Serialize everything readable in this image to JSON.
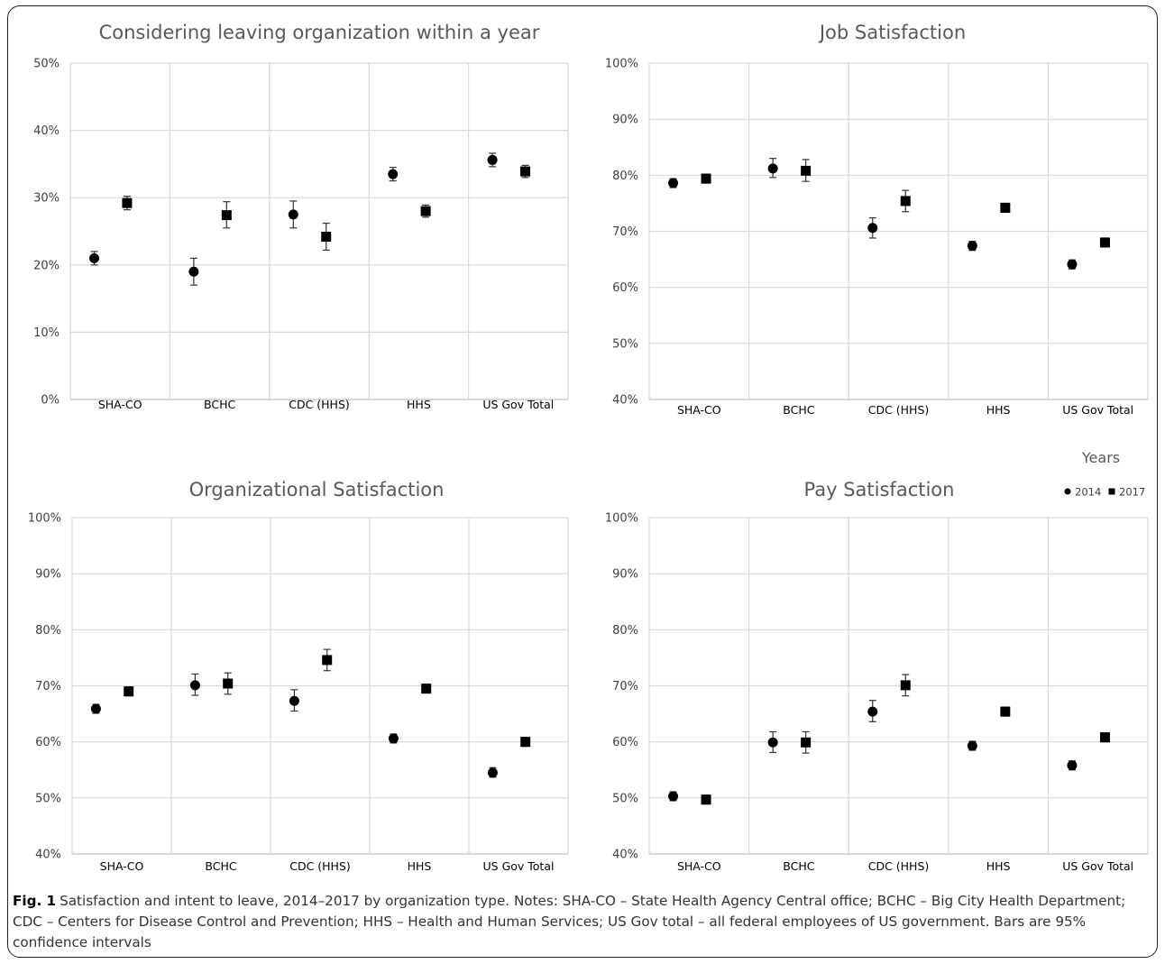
{
  "legend": {
    "title": "Years",
    "items": [
      {
        "label": "2014",
        "marker": "circle"
      },
      {
        "label": "2017",
        "marker": "square"
      }
    ]
  },
  "caption": {
    "label": "Fig. 1",
    "text": "Satisfaction and intent to leave, 2014–2017 by organization type. Notes: SHA-CO – State Health Agency Central office; BCHC – Big City Health Department; CDC – Centers for Disease Control and Prevention; HHS – Health and Human Services; US Gov total – all federal employees of US government. Bars are 95% confidence intervals"
  },
  "colors": {
    "marker": "#000000",
    "grid": "#d9d9d9",
    "axis": "#bfbfbf"
  },
  "chart_data": [
    {
      "type": "scatter",
      "title": "Considering leaving organization within a year",
      "categories": [
        "SHA-CO",
        "BCHC",
        "CDC (HHS)",
        "HHS",
        "US Gov Total"
      ],
      "ylim": [
        0,
        50
      ],
      "yticks": [
        "0%",
        "10%",
        "20%",
        "30%",
        "40%",
        "50%"
      ],
      "grid": true,
      "series": [
        {
          "name": "2014",
          "marker": "circle",
          "values": [
            21.0,
            19.0,
            27.5,
            33.5,
            35.6
          ],
          "ci_low": [
            20.0,
            17.0,
            25.5,
            32.5,
            34.6
          ],
          "ci_high": [
            22.0,
            21.0,
            29.5,
            34.5,
            36.6
          ]
        },
        {
          "name": "2017",
          "marker": "square",
          "values": [
            29.2,
            27.4,
            24.2,
            28.0,
            33.9
          ],
          "ci_low": [
            28.2,
            25.5,
            22.2,
            27.1,
            33.0
          ],
          "ci_high": [
            30.2,
            29.4,
            26.2,
            28.9,
            34.8
          ]
        }
      ]
    },
    {
      "type": "scatter",
      "title": "Job Satisfaction",
      "categories": [
        "SHA-CO",
        "BCHC",
        "CDC (HHS)",
        "HHS",
        "US Gov Total"
      ],
      "ylim": [
        40,
        100
      ],
      "yticks": [
        "40%",
        "50%",
        "60%",
        "70%",
        "80%",
        "90%",
        "100%"
      ],
      "grid": true,
      "series": [
        {
          "name": "2014",
          "marker": "circle",
          "values": [
            78.6,
            81.2,
            70.6,
            67.4,
            64.1
          ],
          "ci_low": [
            77.8,
            79.6,
            68.8,
            66.6,
            63.3
          ],
          "ci_high": [
            79.4,
            83.0,
            72.4,
            68.2,
            64.9
          ]
        },
        {
          "name": "2017",
          "marker": "square",
          "values": [
            79.4,
            80.8,
            75.4,
            74.2,
            68.0
          ],
          "ci_low": [
            78.6,
            78.9,
            73.5,
            73.4,
            67.2
          ],
          "ci_high": [
            80.2,
            82.8,
            77.3,
            75.0,
            68.8
          ]
        }
      ]
    },
    {
      "type": "scatter",
      "title": "Organizational Satisfaction",
      "categories": [
        "SHA-CO",
        "BCHC",
        "CDC (HHS)",
        "HHS",
        "US Gov Total"
      ],
      "ylim": [
        40,
        100
      ],
      "yticks": [
        "40%",
        "50%",
        "60%",
        "70%",
        "80%",
        "90%",
        "100%"
      ],
      "grid": true,
      "series": [
        {
          "name": "2014",
          "marker": "circle",
          "values": [
            65.9,
            70.1,
            67.3,
            60.6,
            54.5
          ],
          "ci_low": [
            65.1,
            68.3,
            65.5,
            59.8,
            53.7
          ],
          "ci_high": [
            66.7,
            72.1,
            69.3,
            61.4,
            55.4
          ]
        },
        {
          "name": "2017",
          "marker": "square",
          "values": [
            69.0,
            70.4,
            74.6,
            69.5,
            60.0
          ],
          "ci_low": [
            68.2,
            68.5,
            72.7,
            68.7,
            59.2
          ],
          "ci_high": [
            69.8,
            72.3,
            76.5,
            70.3,
            60.8
          ]
        }
      ]
    },
    {
      "type": "scatter",
      "title": "Pay Satisfaction",
      "categories": [
        "SHA-CO",
        "BCHC",
        "CDC (HHS)",
        "HHS",
        "US Gov Total"
      ],
      "ylim": [
        40,
        100
      ],
      "yticks": [
        "40%",
        "50%",
        "60%",
        "70%",
        "80%",
        "90%",
        "100%"
      ],
      "grid": true,
      "series": [
        {
          "name": "2014",
          "marker": "circle",
          "values": [
            50.3,
            59.9,
            65.4,
            59.3,
            55.8
          ],
          "ci_low": [
            49.5,
            58.1,
            63.6,
            58.5,
            55.0
          ],
          "ci_high": [
            51.1,
            61.8,
            67.4,
            60.1,
            56.6
          ]
        },
        {
          "name": "2017",
          "marker": "square",
          "values": [
            49.7,
            59.9,
            70.1,
            65.4,
            60.8
          ],
          "ci_low": [
            48.9,
            58.0,
            68.2,
            64.6,
            60.0
          ],
          "ci_high": [
            50.5,
            61.8,
            72.0,
            66.2,
            61.6
          ]
        }
      ]
    }
  ]
}
